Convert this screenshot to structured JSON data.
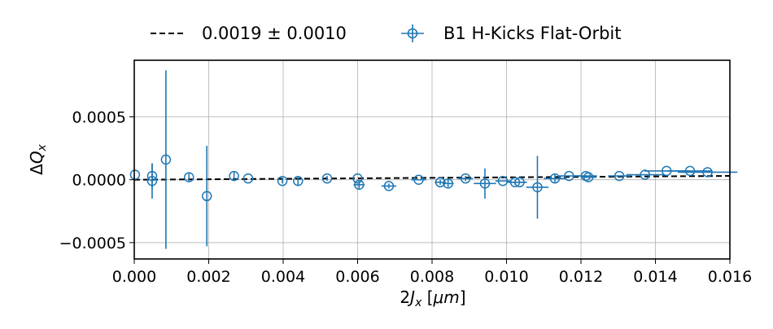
{
  "chart_data": {
    "type": "scatter",
    "title": "",
    "xlabel": "2J_x [μm]",
    "ylabel": "ΔQ_x",
    "xlim": [
      0.0,
      0.016
    ],
    "ylim": [
      -0.00063,
      0.00095
    ],
    "xticks": [
      0.0,
      0.002,
      0.004,
      0.006,
      0.008,
      0.01,
      0.012,
      0.014,
      0.016
    ],
    "xtick_labels": [
      "0.000",
      "0.002",
      "0.004",
      "0.006",
      "0.008",
      "0.010",
      "0.012",
      "0.014",
      "0.016"
    ],
    "yticks": [
      -0.0005,
      0.0,
      0.0005
    ],
    "ytick_labels": [
      "−0.0005",
      "0.0000",
      "0.0005"
    ],
    "grid": true,
    "legend_placement": "top, outside plot",
    "colors": {
      "series": "#1f77b4",
      "fit": "#000000"
    },
    "legend": [
      {
        "label": "0.0019 ± 0.0010",
        "style": "dashed-line"
      },
      {
        "label": "B1 H-Kicks Flat-Orbit",
        "style": "errorbar-marker"
      }
    ],
    "fit_line": {
      "x": [
        0.0,
        0.016
      ],
      "y": [
        0.0,
        3.04e-05
      ]
    },
    "series": [
      {
        "points": [
          {
            "x": 2e-05,
            "y": 4e-05,
            "yerr": 0.0,
            "xerr": 0.0
          },
          {
            "x": 0.00048,
            "y": 3e-05,
            "yerr": 0.0001,
            "xerr": 0.0
          },
          {
            "x": 0.00048,
            "y": -1e-05,
            "yerr": 0.00014,
            "xerr": 0.0
          },
          {
            "x": 0.00085,
            "y": 0.00016,
            "yerr": 0.00071,
            "xerr": 0.0
          },
          {
            "x": 0.00147,
            "y": 2e-05,
            "yerr": 3e-05,
            "xerr": 0.0
          },
          {
            "x": 0.00195,
            "y": -0.00013,
            "yerr": 0.0004,
            "xerr": 0.0
          },
          {
            "x": 0.00268,
            "y": 3e-05,
            "yerr": 3e-05,
            "xerr": 0.0
          },
          {
            "x": 0.00306,
            "y": 1e-05,
            "yerr": 0.0,
            "xerr": 0.0
          },
          {
            "x": 0.00398,
            "y": -1e-05,
            "yerr": 2e-05,
            "xerr": 0.0
          },
          {
            "x": 0.0044,
            "y": -1e-05,
            "yerr": 3e-05,
            "xerr": 0.0
          },
          {
            "x": 0.00518,
            "y": 1e-05,
            "yerr": 2e-05,
            "xerr": 0.0
          },
          {
            "x": 0.006,
            "y": 1e-05,
            "yerr": 0.0,
            "xerr": 0.0
          },
          {
            "x": 0.00604,
            "y": -4e-05,
            "yerr": 3e-05,
            "xerr": 0.00015
          },
          {
            "x": 0.00684,
            "y": -5e-05,
            "yerr": 2e-05,
            "xerr": 0.0002
          },
          {
            "x": 0.00764,
            "y": 0.0,
            "yerr": 0.0,
            "xerr": 0.0002
          },
          {
            "x": 0.00822,
            "y": -2e-05,
            "yerr": 2e-05,
            "xerr": 0.00015
          },
          {
            "x": 0.00843,
            "y": -3e-05,
            "yerr": 3e-05,
            "xerr": 0.00015
          },
          {
            "x": 0.0089,
            "y": 1e-05,
            "yerr": 2e-05,
            "xerr": 0.0002
          },
          {
            "x": 0.00942,
            "y": -3e-05,
            "yerr": 0.00012,
            "xerr": 0.0003
          },
          {
            "x": 0.0099,
            "y": -1e-05,
            "yerr": 0.0,
            "xerr": 0.0002
          },
          {
            "x": 0.01023,
            "y": -2e-05,
            "yerr": 2e-05,
            "xerr": 0.0002
          },
          {
            "x": 0.01035,
            "y": -2e-05,
            "yerr": 0.0,
            "xerr": 0.0002
          },
          {
            "x": 0.01083,
            "y": -6e-05,
            "yerr": 0.00025,
            "xerr": 0.0003
          },
          {
            "x": 0.0113,
            "y": 1e-05,
            "yerr": 3e-05,
            "xerr": 0.0003
          },
          {
            "x": 0.01168,
            "y": 3e-05,
            "yerr": 0.0,
            "xerr": 0.0003
          },
          {
            "x": 0.01213,
            "y": 3e-05,
            "yerr": 0.0,
            "xerr": 0.0003
          },
          {
            "x": 0.0122,
            "y": 2e-05,
            "yerr": 0.0,
            "xerr": 0.0002
          },
          {
            "x": 0.01303,
            "y": 3e-05,
            "yerr": 0.0,
            "xerr": 0.0003
          },
          {
            "x": 0.01372,
            "y": 4e-05,
            "yerr": 0.0,
            "xerr": 0.0005
          },
          {
            "x": 0.0143,
            "y": 7e-05,
            "yerr": 0.0,
            "xerr": 0.0006
          },
          {
            "x": 0.01493,
            "y": 7e-05,
            "yerr": 0.0,
            "xerr": 0.0006
          },
          {
            "x": 0.0154,
            "y": 6e-05,
            "yerr": 0.0,
            "xerr": 0.0008
          }
        ]
      }
    ]
  }
}
